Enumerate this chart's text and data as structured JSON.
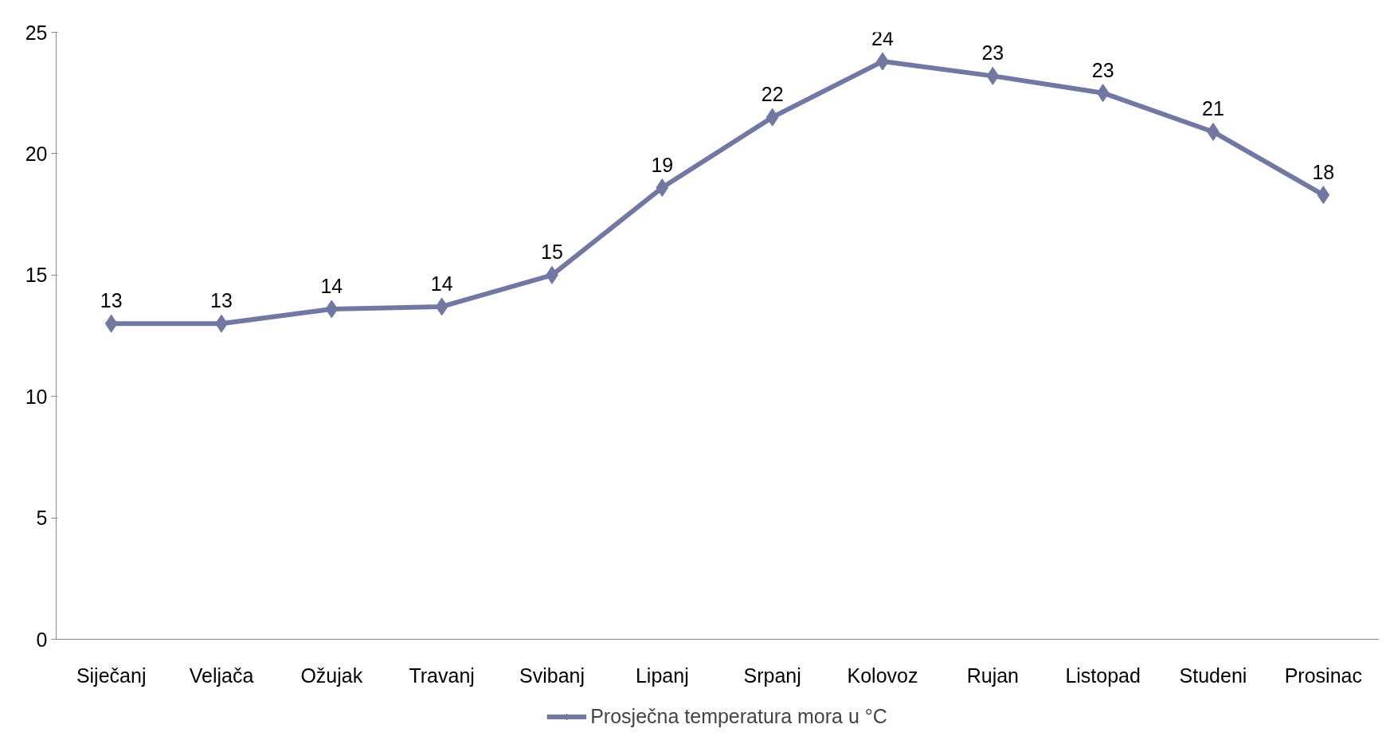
{
  "chart_data": {
    "type": "line",
    "categories": [
      "Siječanj",
      "Veljača",
      "Ožujak",
      "Travanj",
      "Svibanj",
      "Lipanj",
      "Srpanj",
      "Kolovoz",
      "Rujan",
      "Listopad",
      "Studeni",
      "Prosinac"
    ],
    "series": [
      {
        "name": "Prosječna temperatura mora u °C",
        "color": "#7178a1",
        "values": [
          13,
          13,
          13.6,
          13.7,
          15,
          18.6,
          21.5,
          23.8,
          23.2,
          22.5,
          20.9,
          18.3
        ],
        "value_labels": [
          "13",
          "13",
          "14",
          "14",
          "15",
          "19",
          "22",
          "24",
          "23",
          "23",
          "21",
          "18"
        ]
      }
    ],
    "ylim": [
      0,
      25
    ],
    "yticks": [
      0,
      5,
      10,
      15,
      20,
      25
    ],
    "grid": false,
    "legend": "bottom",
    "marker": "diamond",
    "line_style": "solid"
  }
}
